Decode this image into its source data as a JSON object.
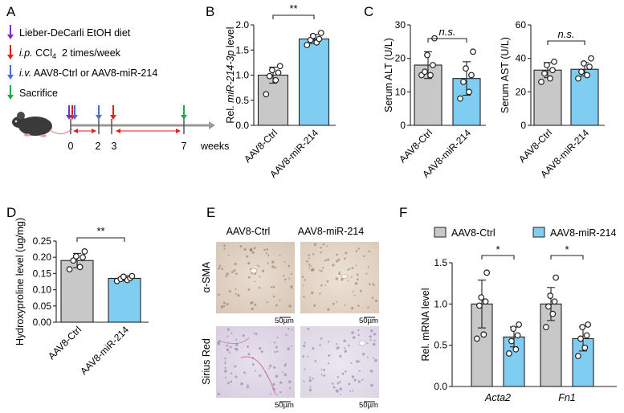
{
  "panel_letters": {
    "a": "A",
    "b": "B",
    "c": "C",
    "d": "D",
    "e": "E",
    "f": "F"
  },
  "panel_a": {
    "legend": [
      {
        "prefix": "",
        "text": "Lieber-DeCarli EtOH diet",
        "color": "#7b2fbe"
      },
      {
        "prefix": "i.p.",
        "text": " CCl",
        "sub": "4",
        "suffix": "  2 times/week",
        "color": "#e0201c"
      },
      {
        "prefix": "i.v.",
        "text": " AAV8-Ctrl or AAV8-miR-214",
        "color": "#4a6fc8"
      },
      {
        "prefix": "",
        "text": "Sacrifice",
        "color": "#1fa64a"
      }
    ],
    "timeline_ticks": [
      "0",
      "2",
      "3",
      "7"
    ],
    "timeline_unit": "weeks",
    "mouse_icon": "mouse-icon"
  },
  "colors": {
    "ctrl": "#c8c8c8",
    "mir": "#7fcdf0",
    "stroke": "#222222"
  },
  "chart_data": [
    {
      "id": "B",
      "type": "bar",
      "categories": [
        "AAV8-Ctrl",
        "AAV8-miR-214"
      ],
      "values": [
        1.0,
        1.72
      ],
      "errors": [
        0.16,
        0.09
      ],
      "points": [
        [
          0.62,
          0.9,
          0.98,
          1.05,
          1.1,
          1.18
        ],
        [
          1.6,
          1.65,
          1.7,
          1.72,
          1.78,
          1.84
        ]
      ],
      "ylabel_prefix": "Rel. ",
      "ylabel_italic": "miR-214-3p",
      "ylabel_suffix": " level",
      "ylim": [
        0,
        2.0
      ],
      "yticks": [
        "0.0",
        "0.5",
        "1.0",
        "1.5",
        "2.0"
      ],
      "significance": "**"
    },
    {
      "id": "C1",
      "type": "bar",
      "categories": [
        "AAV8-Ctrl",
        "AAV8-miR-214"
      ],
      "values": [
        18,
        14
      ],
      "errors": [
        4,
        5
      ],
      "points": [
        [
          15,
          15,
          16,
          18,
          21,
          26
        ],
        [
          8,
          10,
          13,
          15,
          17,
          22
        ]
      ],
      "ylabel": "Serum ALT (U/L)",
      "ylim": [
        0,
        30
      ],
      "yticks": [
        "0",
        "10",
        "20",
        "30"
      ],
      "significance": "n.s."
    },
    {
      "id": "C2",
      "type": "bar",
      "categories": [
        "AAV8-Ctrl",
        "AAV8-miR-214"
      ],
      "values": [
        33,
        33.5
      ],
      "errors": [
        4.5,
        4
      ],
      "points": [
        [
          26,
          28,
          31,
          33,
          36,
          38
        ],
        [
          28,
          30,
          32,
          35,
          37,
          40
        ]
      ],
      "ylabel": "Serum AST (U/L)",
      "ylim": [
        0,
        60
      ],
      "yticks": [
        "0",
        "20",
        "40",
        "60"
      ],
      "significance": "n.s."
    },
    {
      "id": "D",
      "type": "bar",
      "categories": [
        "AAV8-Ctrl",
        "AAV8-miR-214"
      ],
      "values": [
        0.19,
        0.135
      ],
      "errors": [
        0.022,
        0.008
      ],
      "points": [
        [
          0.163,
          0.17,
          0.19,
          0.2,
          0.203,
          0.218
        ],
        [
          0.127,
          0.13,
          0.133,
          0.136,
          0.14,
          0.142
        ]
      ],
      "ylabel": "Hydroxyproline level (ug/mg)",
      "ylim": [
        0,
        0.25
      ],
      "yticks": [
        "0.00",
        "0.05",
        "0.10",
        "0.15",
        "0.20",
        "0.25"
      ],
      "significance": "**"
    },
    {
      "id": "F",
      "type": "bar",
      "groups": [
        "Acta2",
        "Fn1"
      ],
      "series": [
        {
          "name": "AAV8-Ctrl",
          "values": [
            1.0,
            1.0
          ],
          "errors": [
            0.29,
            0.2
          ],
          "points": [
            [
              0.58,
              0.63,
              0.98,
              1.03,
              1.08,
              1.38
            ],
            [
              0.72,
              0.88,
              0.97,
              1.03,
              1.1,
              1.32
            ]
          ]
        },
        {
          "name": "AAV8-miR-214",
          "values": [
            0.6,
            0.58
          ],
          "errors": [
            0.12,
            0.15
          ],
          "points": [
            [
              0.4,
              0.45,
              0.55,
              0.62,
              0.7,
              0.75
            ],
            [
              0.37,
              0.47,
              0.58,
              0.62,
              0.72,
              0.75
            ]
          ]
        }
      ],
      "ylabel": "Rel. mRNA level",
      "ylim": [
        0,
        1.5
      ],
      "yticks": [
        "0.0",
        "0.5",
        "1.0",
        "1.5"
      ],
      "significance": [
        "*",
        "*"
      ],
      "legend_position": "top"
    }
  ],
  "panel_e": {
    "columns": [
      "AAV8-Ctrl",
      "AAV8-miR-214"
    ],
    "rows": [
      "α-SMA",
      "Sirius Red"
    ],
    "scale_bar": "50µm"
  }
}
